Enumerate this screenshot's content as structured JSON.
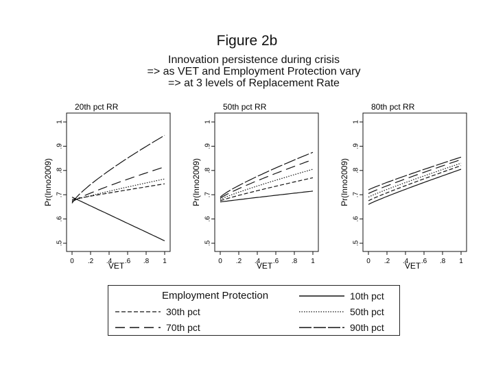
{
  "figure": {
    "title": "Figure 2b",
    "subtitle_lines": [
      "Innovation persistence during crisis",
      "=> as VET and Employment Protection vary",
      "=> at 3 levels of Replacement Rate"
    ]
  },
  "legend": {
    "title": "Employment Protection",
    "items": [
      "10th pct",
      "30th pct",
      "50th pct",
      "70th pct",
      "90th pct"
    ]
  },
  "chart_data": [
    {
      "type": "line",
      "title": "20th pct RR",
      "xlabel": "VET",
      "ylabel": "Pr(Inno2009)",
      "xlim": [
        0,
        1
      ],
      "ylim": [
        0.5,
        1
      ],
      "x_ticks": [
        "0",
        ".2",
        ".4",
        ".6",
        ".8",
        "1"
      ],
      "y_ticks": [
        ".5",
        ".6",
        ".7",
        ".8",
        ".9",
        "1"
      ],
      "x": [
        0,
        1
      ],
      "series": [
        {
          "name": "10th pct",
          "values": [
            0.69,
            0.51
          ],
          "curve": 1.0
        },
        {
          "name": "30th pct",
          "values": [
            0.68,
            0.745
          ],
          "curve": 0.95
        },
        {
          "name": "50th pct",
          "values": [
            0.675,
            0.765
          ],
          "curve": 0.9
        },
        {
          "name": "70th pct",
          "values": [
            0.67,
            0.815
          ],
          "curve": 0.85
        },
        {
          "name": "90th pct",
          "values": [
            0.665,
            0.945
          ],
          "curve": 0.8
        }
      ]
    },
    {
      "type": "line",
      "title": "50th pct RR",
      "xlabel": "VET",
      "ylabel": "Pr(Inno2009)",
      "xlim": [
        0,
        1
      ],
      "ylim": [
        0.5,
        1
      ],
      "x_ticks": [
        "0",
        ".2",
        ".4",
        ".6",
        ".8",
        "1"
      ],
      "y_ticks": [
        ".5",
        ".6",
        ".7",
        ".8",
        ".9",
        "1"
      ],
      "x": [
        0,
        1
      ],
      "series": [
        {
          "name": "10th pct",
          "values": [
            0.67,
            0.715
          ],
          "curve": 0.95
        },
        {
          "name": "30th pct",
          "values": [
            0.675,
            0.77
          ],
          "curve": 0.9
        },
        {
          "name": "50th pct",
          "values": [
            0.68,
            0.805
          ],
          "curve": 0.88
        },
        {
          "name": "70th pct",
          "values": [
            0.685,
            0.845
          ],
          "curve": 0.86
        },
        {
          "name": "90th pct",
          "values": [
            0.69,
            0.875
          ],
          "curve": 0.84
        }
      ]
    },
    {
      "type": "line",
      "title": "80th pct RR",
      "xlabel": "VET",
      "ylabel": "Pr(Inno2009)",
      "xlim": [
        0,
        1
      ],
      "ylim": [
        0.5,
        1
      ],
      "x_ticks": [
        "0",
        ".2",
        ".4",
        ".6",
        ".8",
        "1"
      ],
      "y_ticks": [
        ".5",
        ".6",
        ".7",
        ".8",
        ".9",
        "1"
      ],
      "x": [
        0,
        1
      ],
      "series": [
        {
          "name": "10th pct",
          "values": [
            0.66,
            0.805
          ],
          "curve": 0.92
        },
        {
          "name": "30th pct",
          "values": [
            0.675,
            0.82
          ],
          "curve": 0.92
        },
        {
          "name": "50th pct",
          "values": [
            0.69,
            0.83
          ],
          "curve": 0.92
        },
        {
          "name": "70th pct",
          "values": [
            0.705,
            0.845
          ],
          "curve": 0.92
        },
        {
          "name": "90th pct",
          "values": [
            0.72,
            0.855
          ],
          "curve": 0.92
        }
      ]
    }
  ]
}
